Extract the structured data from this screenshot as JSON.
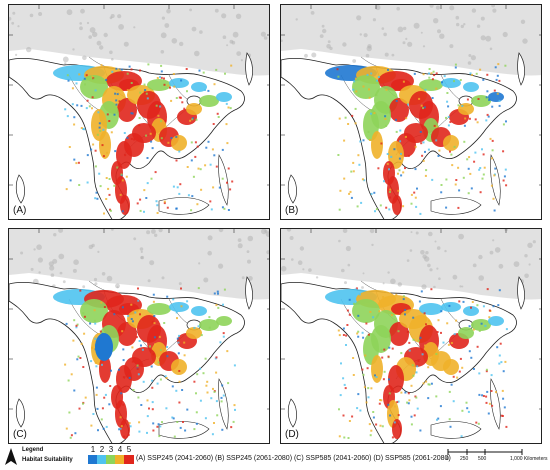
{
  "panels": [
    {
      "id": "A",
      "label": "(A)"
    },
    {
      "id": "B",
      "label": "(B)"
    },
    {
      "id": "C",
      "label": "(C)"
    },
    {
      "id": "D",
      "label": "(D)"
    }
  ],
  "legend": {
    "title": "Legend",
    "subtitle": "Habitat Suitability",
    "classes": [
      {
        "label": "1",
        "color": "#1f78d1"
      },
      {
        "label": "2",
        "color": "#4fc3f0"
      },
      {
        "label": "3",
        "color": "#8ed45a"
      },
      {
        "label": "4",
        "color": "#f0b12a"
      },
      {
        "label": "5",
        "color": "#e0261c"
      }
    ],
    "scenarios": "(A) SSP245 (2041-2060) (B) SSP245 (2061-2080) (C) SSP585 (2041-2060) (D) SSP585 (2061-2080)"
  },
  "scale_bar": {
    "ticks": [
      "0",
      "250",
      "500",
      "1,000 Kilometers"
    ]
  },
  "colors": {
    "highland": "#c9c9c9",
    "coast": "#222222",
    "border": "#555555"
  }
}
